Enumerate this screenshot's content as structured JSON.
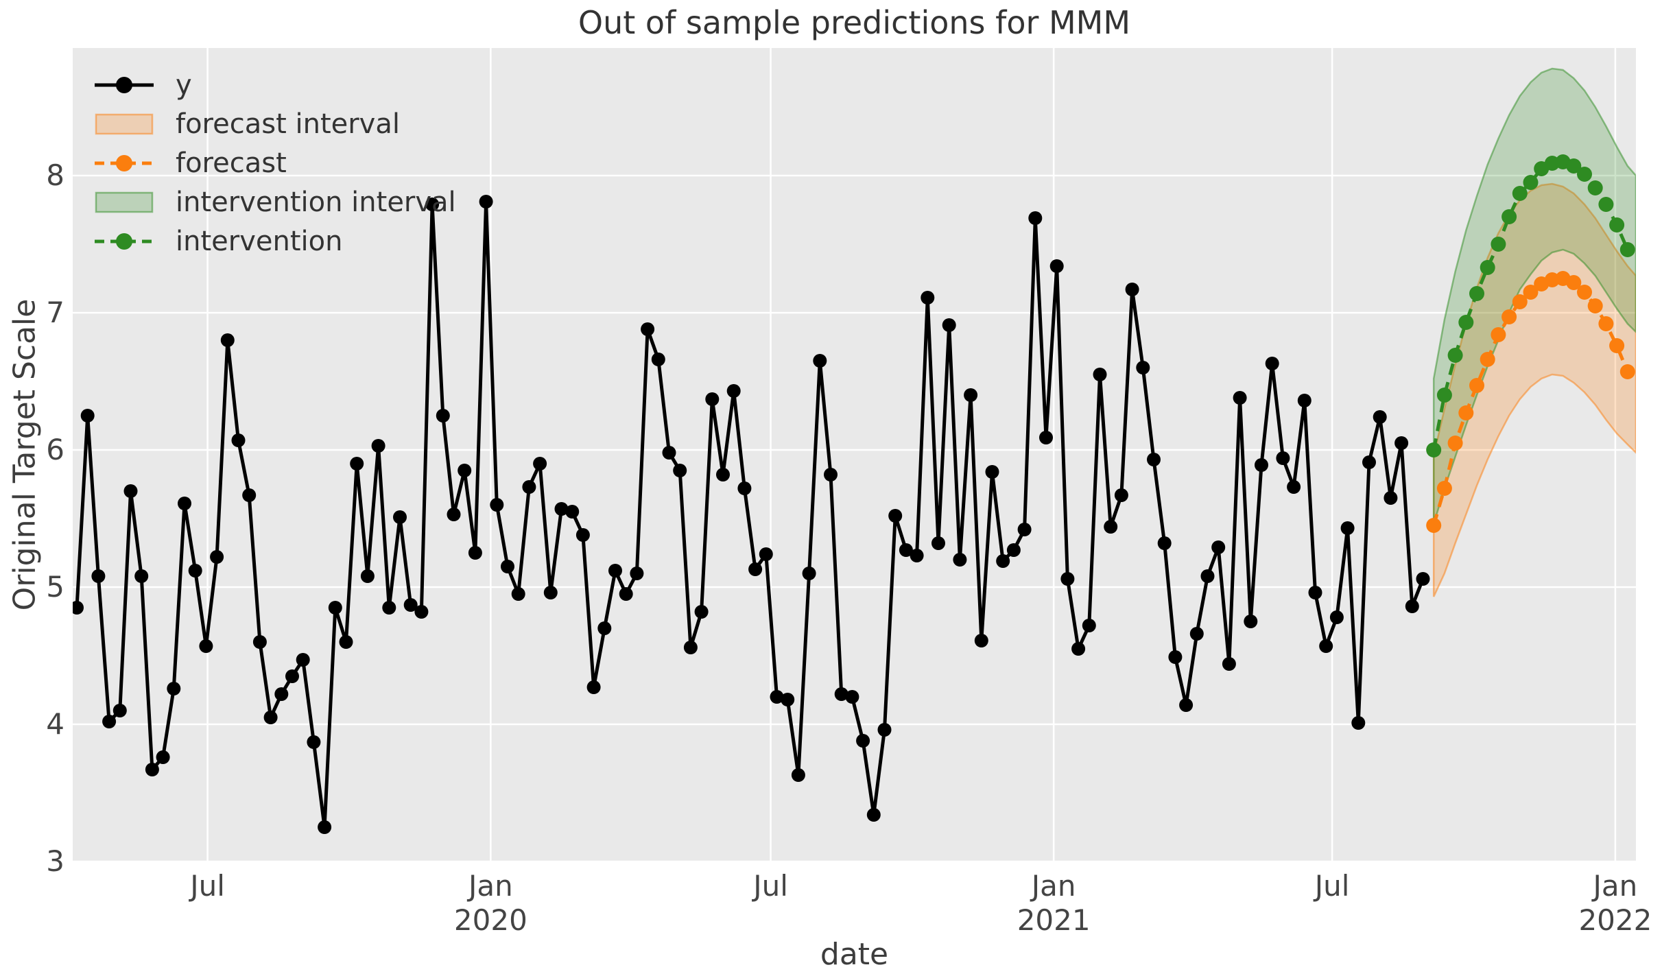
{
  "window": {
    "title": "Out of sample predictions for MMM"
  },
  "chart_data": {
    "type": "line",
    "title": "Out of sample predictions for MMM",
    "xlabel": "date",
    "ylabel": "Original Target Scale",
    "ylim": [
      3.0,
      8.93
    ],
    "grid": true,
    "background": "#e9e9e9",
    "gridline_color": "#ffffff",
    "legend_position": "upper left",
    "frequency": "weekly",
    "y_axis": {
      "ticks": [
        "3",
        "4",
        "5",
        "6",
        "7",
        "8"
      ],
      "tick_values": [
        3,
        4,
        5,
        6,
        7,
        8
      ]
    },
    "x_axis": {
      "ticks": [
        {
          "week": 12.14,
          "label": "Jul",
          "year": ""
        },
        {
          "week": 38.43,
          "label": "Jan",
          "year": "2020"
        },
        {
          "week": 64.43,
          "label": "Jul",
          "year": ""
        },
        {
          "week": 90.71,
          "label": "Jan",
          "year": "2021"
        },
        {
          "week": 116.57,
          "label": "Jul",
          "year": ""
        },
        {
          "week": 142.86,
          "label": "Jan",
          "year": "2022"
        }
      ]
    },
    "legend": [
      {
        "label": "y",
        "type": "line-marker",
        "color": "#000000",
        "dash": false
      },
      {
        "label": "forecast interval",
        "type": "patch",
        "color": "#fb7e0e"
      },
      {
        "label": "forecast",
        "type": "line-marker",
        "color": "#fb7e0e",
        "dash": true
      },
      {
        "label": "intervention interval",
        "type": "patch",
        "color": "#2e8b22"
      },
      {
        "label": "intervention",
        "type": "line-marker",
        "color": "#2e8b22",
        "dash": true
      }
    ],
    "series": [
      {
        "name": "y",
        "color": "#000000",
        "line_style": "solid",
        "marker": "circle",
        "start_week": 0,
        "values": [
          4.85,
          6.25,
          5.08,
          4.02,
          4.1,
          5.7,
          5.08,
          3.67,
          3.76,
          4.26,
          5.61,
          5.12,
          4.57,
          5.22,
          6.8,
          6.07,
          5.67,
          4.6,
          4.05,
          4.22,
          4.35,
          4.47,
          3.87,
          3.25,
          4.85,
          4.6,
          5.9,
          5.08,
          6.03,
          4.85,
          5.51,
          4.87,
          4.82,
          7.79,
          6.25,
          5.53,
          5.85,
          5.25,
          7.81,
          5.6,
          5.15,
          4.95,
          5.73,
          5.9,
          4.96,
          5.57,
          5.55,
          5.38,
          4.27,
          4.7,
          5.12,
          4.95,
          5.1,
          6.88,
          6.66,
          5.98,
          5.85,
          4.56,
          4.82,
          6.37,
          5.82,
          6.43,
          5.72,
          5.13,
          5.24,
          4.2,
          4.18,
          3.63,
          5.1,
          6.65,
          5.82,
          4.22,
          4.2,
          3.88,
          3.34,
          3.96,
          5.52,
          5.27,
          5.23,
          7.11,
          5.32,
          6.91,
          5.2,
          6.4,
          4.61,
          5.84,
          5.19,
          5.27,
          5.42,
          7.69,
          6.09,
          7.34,
          5.06,
          4.55,
          4.72,
          6.55,
          5.44,
          5.67,
          7.17,
          6.6,
          5.93,
          5.32,
          4.49,
          4.14,
          4.66,
          5.08,
          5.29,
          4.44,
          6.38,
          4.75,
          5.89,
          6.63,
          5.94,
          5.73,
          6.36,
          4.96,
          4.57,
          4.78,
          5.43,
          4.01,
          5.91,
          6.24,
          5.65,
          6.05,
          4.86,
          5.06
        ]
      },
      {
        "name": "forecast",
        "color": "#fb7e0e",
        "line_style": "dashed",
        "marker": "circle",
        "start_week": 126,
        "band_label": "forecast interval",
        "values": [
          5.45,
          5.72,
          6.05,
          6.27,
          6.47,
          6.66,
          6.84,
          6.97,
          7.08,
          7.15,
          7.21,
          7.24,
          7.25,
          7.22,
          7.15,
          7.05,
          6.92,
          6.76,
          6.57
        ],
        "lower": [
          4.93,
          5.1,
          5.32,
          5.53,
          5.74,
          5.93,
          6.1,
          6.25,
          6.37,
          6.46,
          6.52,
          6.55,
          6.54,
          6.49,
          6.42,
          6.33,
          6.22,
          6.12,
          6.04
        ],
        "upper": [
          5.96,
          6.3,
          6.62,
          6.92,
          7.18,
          7.4,
          7.58,
          7.72,
          7.82,
          7.89,
          7.93,
          7.94,
          7.92,
          7.87,
          7.79,
          7.69,
          7.57,
          7.45,
          7.34
        ],
        "edge_lower": 5.98,
        "edge_upper": 7.27
      },
      {
        "name": "intervention",
        "color": "#2e8b22",
        "line_style": "dashed",
        "marker": "circle",
        "start_week": 126,
        "band_label": "intervention interval",
        "values": [
          6.0,
          6.4,
          6.69,
          6.93,
          7.14,
          7.33,
          7.5,
          7.7,
          7.87,
          7.95,
          8.05,
          8.09,
          8.1,
          8.07,
          8.01,
          7.91,
          7.79,
          7.64,
          7.46
        ],
        "lower": [
          5.46,
          5.72,
          5.95,
          6.18,
          6.4,
          6.61,
          6.8,
          7.0,
          7.17,
          7.28,
          7.38,
          7.44,
          7.46,
          7.43,
          7.36,
          7.27,
          7.15,
          7.03,
          6.92
        ],
        "edge_lower": 6.86,
        "upper": [
          6.52,
          6.95,
          7.3,
          7.6,
          7.85,
          8.08,
          8.27,
          8.44,
          8.58,
          8.68,
          8.75,
          8.78,
          8.77,
          8.71,
          8.62,
          8.5,
          8.36,
          8.21,
          8.07
        ],
        "edge_upper": 8.0
      }
    ]
  }
}
